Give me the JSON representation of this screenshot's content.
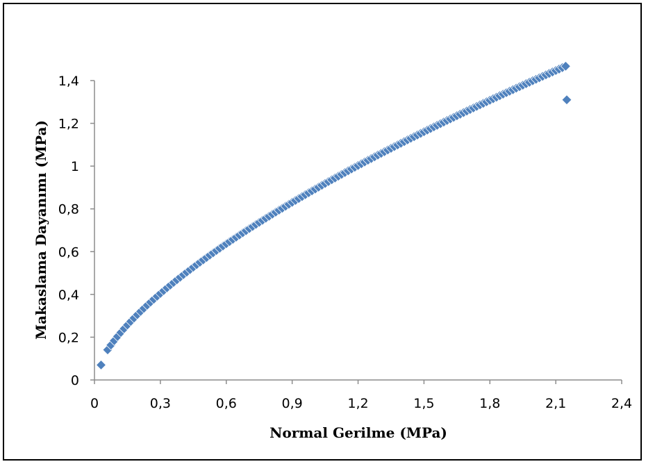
{
  "chart_data": {
    "type": "scatter",
    "title": "",
    "xlabel": "Normal Gerilme (MPa)",
    "ylabel": "Makaslama Dayanımı (MPa)",
    "xlim": [
      0,
      2.4
    ],
    "ylim": [
      0,
      1.4
    ],
    "x_ticks": [
      "0",
      "0,3",
      "0,6",
      "0,9",
      "1,2",
      "1,5",
      "1,8",
      "2,1",
      "2,4"
    ],
    "y_ticks": [
      "0",
      "0,2",
      "0,4",
      "0,6",
      "0,8",
      "1",
      "1,2",
      "1,4"
    ],
    "grid": false,
    "legend": "none",
    "marker": "diamond",
    "series_color": "#4F81BD",
    "curve": {
      "form": "power",
      "coefficient": 0.89,
      "exponent": 0.655,
      "x_start": 0.06,
      "x_end": 2.15,
      "step": 0.015
    },
    "extra_points": [
      {
        "x": 0.03,
        "y": 0.07
      },
      {
        "x": 2.15,
        "y": 1.31
      }
    ]
  }
}
